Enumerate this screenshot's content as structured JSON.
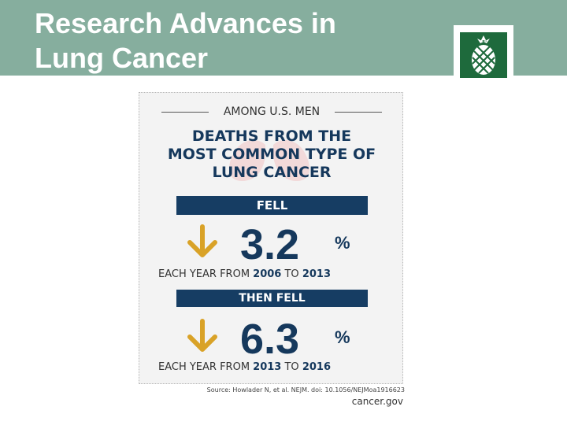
{
  "slide": {
    "title_line1": "Research Advances in",
    "title_line2": "Lung Cancer",
    "header_color": "#86ae9e",
    "logo_icon": "pineapple-icon",
    "logo_color": "#1e6a3c"
  },
  "infographic": {
    "kicker": "AMONG U.S. MEN",
    "headline_line1": "DEATHS FROM THE",
    "headline_line2": "MOST COMMON TYPE OF",
    "headline_line3": "LUNG CANCER",
    "banner1": "FELL",
    "stat1_value": "3.2",
    "stat1_unit": "%",
    "caption1_prefix": "EACH YEAR FROM ",
    "caption1_from": "2006",
    "caption1_mid": " TO ",
    "caption1_to": "2013",
    "banner2": "THEN FELL",
    "stat2_value": "6.3",
    "stat2_unit": "%",
    "caption2_prefix": "EACH YEAR FROM ",
    "caption2_from": "2013",
    "caption2_mid": " TO ",
    "caption2_to": "2016",
    "arrow_icon": "down-arrow-icon",
    "arrow_color": "#d9a227",
    "navy_color": "#163d63",
    "source": "Source: Howlader N, et al. NEJM. doi: 10.1056/NEJMoa1916623",
    "site": "cancer.gov"
  }
}
